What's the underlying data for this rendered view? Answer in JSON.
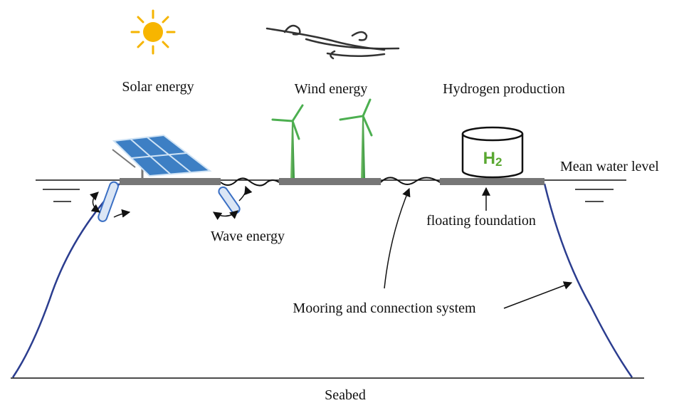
{
  "labels": {
    "solar": "Solar energy",
    "wind": "Wind energy",
    "hydrogen": "Hydrogen production",
    "water_level": "Mean water level",
    "foundation": "floating foundation",
    "wave": "Wave energy",
    "mooring": "Mooring and connection system",
    "seabed": "Seabed"
  },
  "tank": {
    "symbol": "H",
    "subscript": "2"
  }
}
